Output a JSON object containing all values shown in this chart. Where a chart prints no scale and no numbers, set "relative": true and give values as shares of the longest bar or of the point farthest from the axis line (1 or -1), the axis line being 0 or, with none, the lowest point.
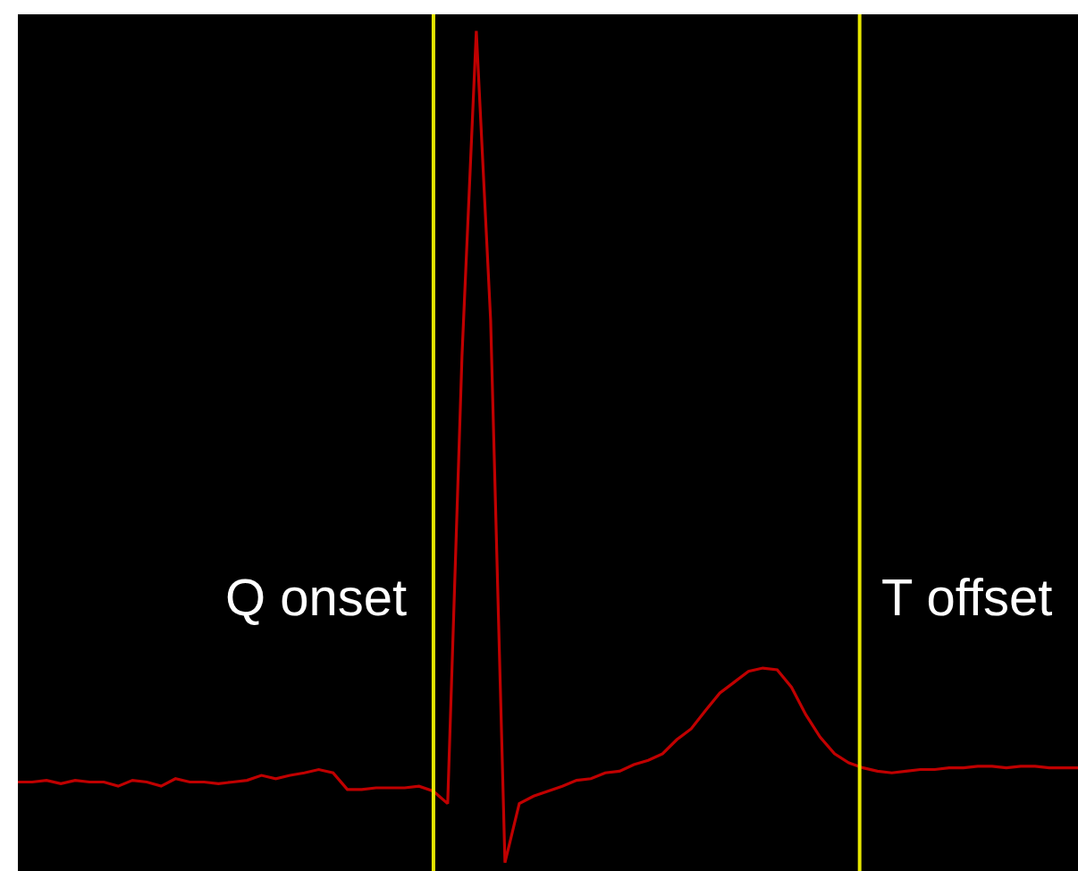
{
  "chart_data": {
    "type": "line",
    "relative": true,
    "categories": [
      null,
      null,
      null,
      null,
      null,
      null,
      null,
      null,
      null,
      null,
      null,
      null,
      null,
      null,
      null,
      null,
      null,
      null,
      null,
      null,
      null,
      null,
      null,
      null,
      null,
      null,
      null,
      null,
      null,
      null,
      null,
      null,
      null,
      null,
      null,
      null,
      null,
      null,
      null,
      null,
      null,
      null,
      null,
      null,
      null,
      null,
      null,
      null,
      null,
      null,
      null,
      null,
      null,
      null,
      null,
      null,
      null,
      null,
      null,
      null,
      null,
      null,
      null,
      null,
      null,
      null,
      null,
      null,
      null,
      null,
      null,
      null,
      null,
      null,
      null
    ],
    "series": [
      {
        "color": "#c00000",
        "values": [
          0.097,
          0.097,
          0.099,
          0.095,
          0.099,
          0.097,
          0.097,
          0.092,
          0.099,
          0.097,
          0.092,
          0.101,
          0.097,
          0.097,
          0.095,
          0.097,
          0.099,
          0.105,
          0.101,
          0.105,
          0.108,
          0.112,
          0.108,
          0.088,
          0.088,
          0.09,
          0.09,
          0.09,
          0.092,
          0.086,
          0.071,
          0.609,
          1,
          0.652,
          0,
          0.071,
          0.08,
          0.086,
          0.092,
          0.099,
          0.101,
          0.108,
          0.11,
          0.118,
          0.123,
          0.131,
          0.148,
          0.161,
          0.183,
          0.204,
          0.217,
          0.23,
          0.234,
          0.232,
          0.211,
          0.178,
          0.151,
          0.131,
          0.12,
          0.114,
          0.11,
          0.108,
          0.11,
          0.112,
          0.112,
          0.114,
          0.114,
          0.116,
          0.116,
          0.114,
          0.116,
          0.116,
          0.114,
          0.114,
          0.114
        ]
      }
    ],
    "annotations": [
      "Q onset",
      "T offset"
    ],
    "marker": "none",
    "line_style": "solid"
  }
}
